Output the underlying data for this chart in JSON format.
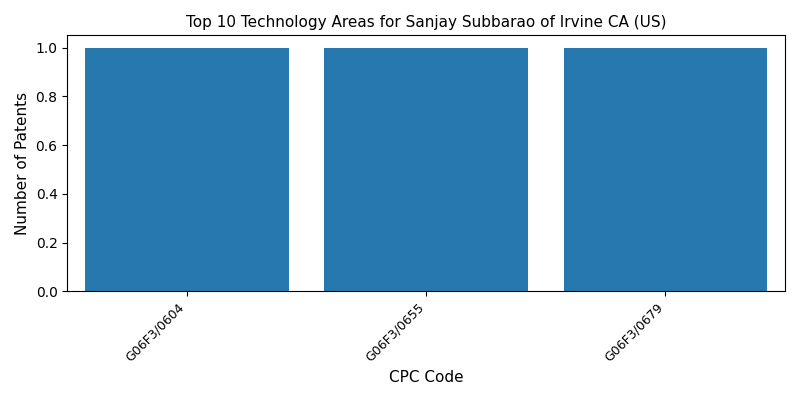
{
  "title": "Top 10 Technology Areas for Sanjay Subbarao of Irvine CA (US)",
  "categories": [
    "G06F3/0604",
    "G06F3/0655",
    "G06F3/0679"
  ],
  "values": [
    1,
    1,
    1
  ],
  "bar_color": "#2878b0",
  "xlabel": "CPC Code",
  "ylabel": "Number of Patents",
  "ylim": [
    0,
    1.05
  ],
  "yticks": [
    0.0,
    0.2,
    0.4,
    0.6,
    0.8,
    1.0
  ],
  "bar_width": 0.85,
  "figsize": [
    8.0,
    4.0
  ],
  "dpi": 100
}
